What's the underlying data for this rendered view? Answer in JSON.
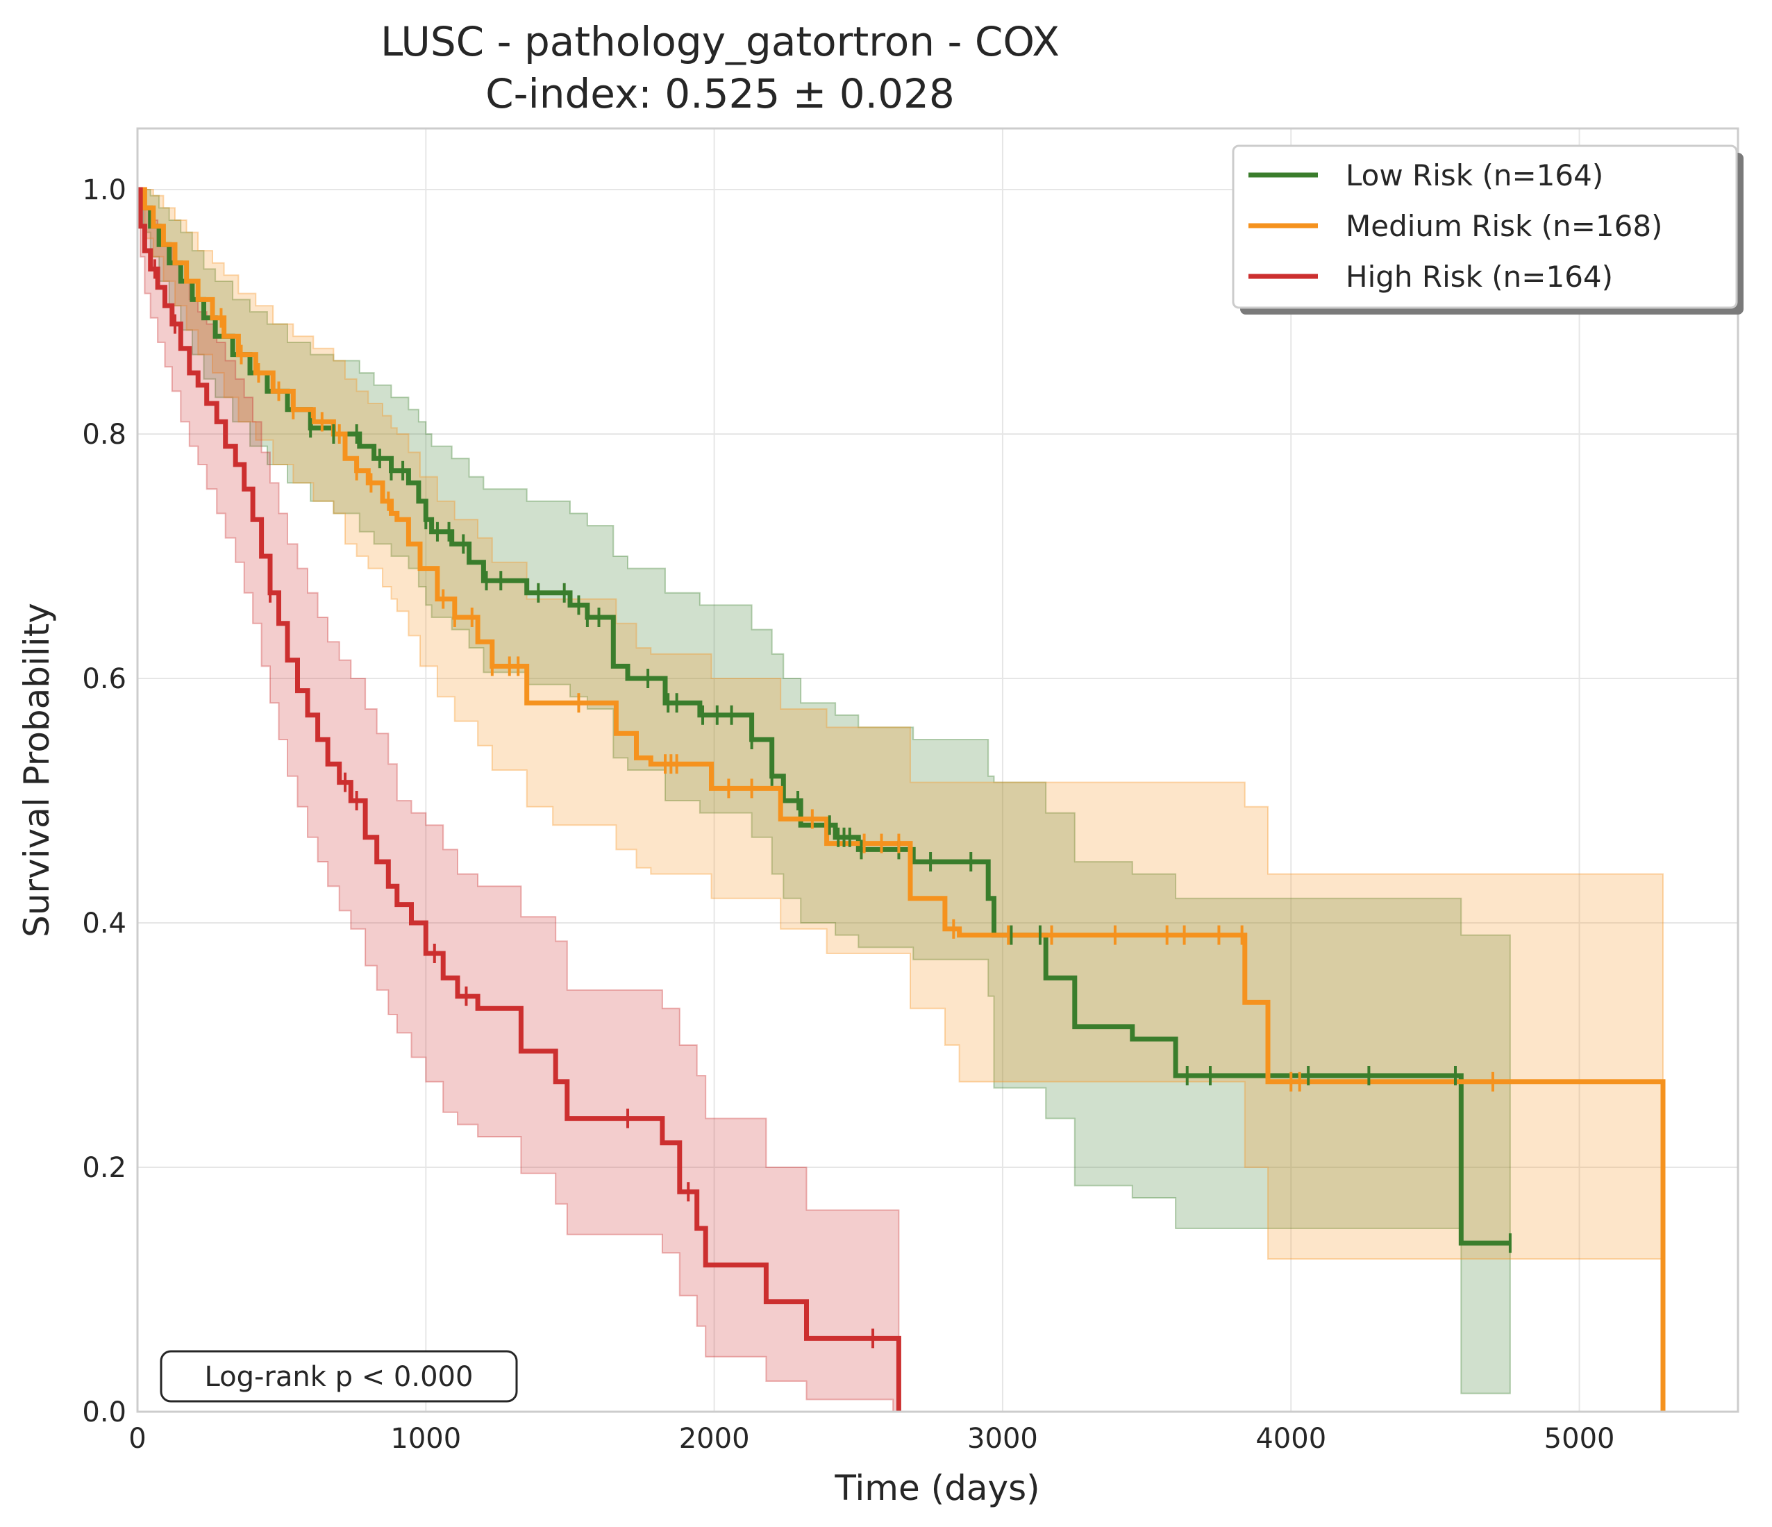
{
  "chart_data": {
    "type": "line",
    "title": "LUSC - pathology_gatortron - COX",
    "subtitle": "C-index: 0.525 ± 0.028",
    "xlabel": "Time (days)",
    "ylabel": "Survival Probability",
    "xlim": [
      0,
      5550
    ],
    "ylim": [
      0,
      1.05
    ],
    "xticks": [
      0,
      1000,
      2000,
      3000,
      4000,
      5000
    ],
    "xtick_labels": [
      "0",
      "1000",
      "2000",
      "3000",
      "4000",
      "5000"
    ],
    "yticks": [
      0.0,
      0.2,
      0.4,
      0.6,
      0.8,
      1.0
    ],
    "ytick_labels": [
      "0.0",
      "0.2",
      "0.4",
      "0.6",
      "0.8",
      "1.0"
    ],
    "grid": true,
    "legend_position": "top-right",
    "annotation": "Log-rank p < 0.000",
    "series": [
      {
        "name": "Low Risk (n=164)",
        "color": "#3a7d2c",
        "step_times": [
          0,
          20,
          45,
          75,
          110,
          150,
          190,
          230,
          270,
          330,
          390,
          450,
          520,
          600,
          680,
          770,
          820,
          880,
          940,
          975,
          1000,
          1020,
          1090,
          1150,
          1200,
          1350,
          1500,
          1560,
          1650,
          1700,
          1830,
          1950,
          2130,
          2200,
          2240,
          2300,
          2420,
          2500,
          2690,
          2950,
          2970,
          3150,
          3250,
          3450,
          3600,
          4000,
          4590,
          4760
        ],
        "survival": [
          1.0,
          0.985,
          0.97,
          0.955,
          0.94,
          0.925,
          0.91,
          0.895,
          0.88,
          0.865,
          0.85,
          0.835,
          0.82,
          0.805,
          0.8,
          0.79,
          0.78,
          0.77,
          0.76,
          0.745,
          0.73,
          0.72,
          0.71,
          0.695,
          0.68,
          0.67,
          0.66,
          0.65,
          0.61,
          0.6,
          0.58,
          0.57,
          0.55,
          0.52,
          0.5,
          0.48,
          0.47,
          0.46,
          0.45,
          0.42,
          0.39,
          0.355,
          0.315,
          0.305,
          0.275,
          0.275,
          0.138,
          0.138
        ],
        "ci_upper": [
          1.0,
          1.0,
          0.995,
          0.985,
          0.975,
          0.965,
          0.95,
          0.935,
          0.925,
          0.91,
          0.9,
          0.89,
          0.875,
          0.865,
          0.86,
          0.85,
          0.84,
          0.83,
          0.82,
          0.81,
          0.8,
          0.79,
          0.78,
          0.765,
          0.755,
          0.745,
          0.735,
          0.725,
          0.7,
          0.69,
          0.67,
          0.66,
          0.64,
          0.62,
          0.6,
          0.58,
          0.57,
          0.56,
          0.55,
          0.52,
          0.515,
          0.49,
          0.45,
          0.44,
          0.42,
          0.42,
          0.39,
          0.39
        ],
        "ci_lower": [
          1.0,
          0.965,
          0.945,
          0.925,
          0.905,
          0.885,
          0.865,
          0.845,
          0.83,
          0.81,
          0.79,
          0.775,
          0.76,
          0.745,
          0.735,
          0.72,
          0.71,
          0.7,
          0.69,
          0.675,
          0.66,
          0.65,
          0.64,
          0.625,
          0.605,
          0.595,
          0.585,
          0.575,
          0.535,
          0.525,
          0.5,
          0.49,
          0.47,
          0.44,
          0.42,
          0.4,
          0.39,
          0.38,
          0.37,
          0.34,
          0.265,
          0.24,
          0.185,
          0.175,
          0.15,
          0.15,
          0.015,
          0.015
        ],
        "censor_times": [
          600,
          680,
          760,
          840,
          880,
          920,
          1000,
          1040,
          1080,
          1130,
          1210,
          1260,
          1390,
          1480,
          1530,
          1560,
          1600,
          1770,
          1840,
          1870,
          1960,
          2010,
          2060,
          2130,
          2200,
          2290,
          2400,
          2430,
          2450,
          2470,
          2510,
          2640,
          2750,
          2890,
          3030,
          3130,
          3640,
          3720,
          4060,
          4270,
          4570,
          4760
        ]
      },
      {
        "name": "Medium Risk (n=168)",
        "color": "#f5921e",
        "step_times": [
          0,
          25,
          55,
          90,
          130,
          170,
          210,
          260,
          300,
          350,
          410,
          470,
          540,
          610,
          680,
          720,
          760,
          800,
          850,
          880,
          900,
          940,
          980,
          1040,
          1100,
          1180,
          1230,
          1350,
          1440,
          1660,
          1730,
          1780,
          1990,
          2230,
          2390,
          2680,
          2800,
          2850,
          3000,
          3840,
          3920,
          4000,
          5280,
          5290
        ],
        "survival": [
          1.0,
          0.985,
          0.97,
          0.955,
          0.94,
          0.925,
          0.91,
          0.895,
          0.88,
          0.865,
          0.85,
          0.835,
          0.82,
          0.81,
          0.8,
          0.78,
          0.77,
          0.76,
          0.745,
          0.735,
          0.73,
          0.71,
          0.69,
          0.665,
          0.65,
          0.63,
          0.61,
          0.58,
          0.58,
          0.555,
          0.535,
          0.53,
          0.51,
          0.485,
          0.465,
          0.42,
          0.395,
          0.39,
          0.39,
          0.335,
          0.27,
          0.27,
          0.27,
          0.0
        ],
        "ci_upper": [
          1.0,
          1.0,
          0.995,
          0.985,
          0.975,
          0.965,
          0.95,
          0.94,
          0.93,
          0.915,
          0.905,
          0.89,
          0.88,
          0.87,
          0.86,
          0.845,
          0.835,
          0.825,
          0.815,
          0.805,
          0.8,
          0.785,
          0.765,
          0.745,
          0.73,
          0.715,
          0.695,
          0.665,
          0.665,
          0.645,
          0.625,
          0.62,
          0.6,
          0.575,
          0.56,
          0.515,
          0.515,
          0.515,
          0.515,
          0.495,
          0.44,
          0.44,
          0.44,
          0.44
        ],
        "ci_lower": [
          1.0,
          0.96,
          0.945,
          0.925,
          0.905,
          0.885,
          0.865,
          0.85,
          0.83,
          0.81,
          0.795,
          0.775,
          0.76,
          0.745,
          0.735,
          0.71,
          0.7,
          0.69,
          0.675,
          0.665,
          0.655,
          0.635,
          0.61,
          0.585,
          0.565,
          0.545,
          0.525,
          0.495,
          0.48,
          0.46,
          0.445,
          0.44,
          0.42,
          0.395,
          0.375,
          0.33,
          0.3,
          0.27,
          0.27,
          0.2,
          0.125,
          0.125,
          0.125,
          0.125
        ],
        "censor_times": [
          290,
          360,
          420,
          490,
          540,
          640,
          700,
          760,
          810,
          870,
          1060,
          1100,
          1160,
          1230,
          1290,
          1320,
          1530,
          1830,
          1850,
          1870,
          2050,
          2130,
          2340,
          2520,
          2580,
          2640,
          2830,
          3020,
          3170,
          3390,
          3570,
          3630,
          3750,
          3830,
          4000,
          4030,
          4700
        ]
      },
      {
        "name": "High Risk (n=164)",
        "color": "#cc2f2f",
        "step_times": [
          0,
          10,
          25,
          45,
          70,
          95,
          120,
          150,
          180,
          210,
          240,
          275,
          305,
          340,
          370,
          400,
          430,
          460,
          490,
          520,
          555,
          590,
          625,
          660,
          700,
          740,
          790,
          830,
          870,
          900,
          950,
          1000,
          1060,
          1110,
          1180,
          1330,
          1450,
          1490,
          1820,
          1880,
          1940,
          1970,
          2180,
          2320,
          2620,
          2640
        ],
        "survival": [
          1.0,
          0.97,
          0.95,
          0.935,
          0.92,
          0.905,
          0.89,
          0.87,
          0.85,
          0.84,
          0.825,
          0.81,
          0.79,
          0.775,
          0.755,
          0.73,
          0.7,
          0.67,
          0.645,
          0.615,
          0.59,
          0.57,
          0.55,
          0.53,
          0.515,
          0.5,
          0.47,
          0.45,
          0.43,
          0.415,
          0.4,
          0.375,
          0.355,
          0.34,
          0.33,
          0.295,
          0.27,
          0.24,
          0.22,
          0.18,
          0.15,
          0.12,
          0.09,
          0.06,
          0.06,
          0.0
        ],
        "ci_upper": [
          1.0,
          0.995,
          0.985,
          0.975,
          0.965,
          0.955,
          0.94,
          0.925,
          0.91,
          0.9,
          0.89,
          0.875,
          0.86,
          0.845,
          0.83,
          0.81,
          0.785,
          0.76,
          0.735,
          0.71,
          0.69,
          0.67,
          0.65,
          0.63,
          0.615,
          0.6,
          0.575,
          0.555,
          0.53,
          0.5,
          0.49,
          0.48,
          0.46,
          0.44,
          0.43,
          0.405,
          0.385,
          0.345,
          0.33,
          0.3,
          0.275,
          0.24,
          0.2,
          0.165,
          0.165,
          0.165
        ],
        "ci_lower": [
          1.0,
          0.945,
          0.915,
          0.895,
          0.875,
          0.855,
          0.835,
          0.81,
          0.79,
          0.775,
          0.755,
          0.735,
          0.715,
          0.695,
          0.67,
          0.645,
          0.61,
          0.58,
          0.55,
          0.52,
          0.495,
          0.47,
          0.45,
          0.43,
          0.41,
          0.395,
          0.365,
          0.345,
          0.325,
          0.31,
          0.29,
          0.27,
          0.245,
          0.235,
          0.225,
          0.195,
          0.17,
          0.145,
          0.13,
          0.095,
          0.07,
          0.045,
          0.025,
          0.01,
          0.0,
          0.0
        ],
        "censor_times": [
          60,
          130,
          460,
          720,
          760,
          1030,
          1140,
          1700,
          1910,
          2550
        ]
      }
    ]
  }
}
